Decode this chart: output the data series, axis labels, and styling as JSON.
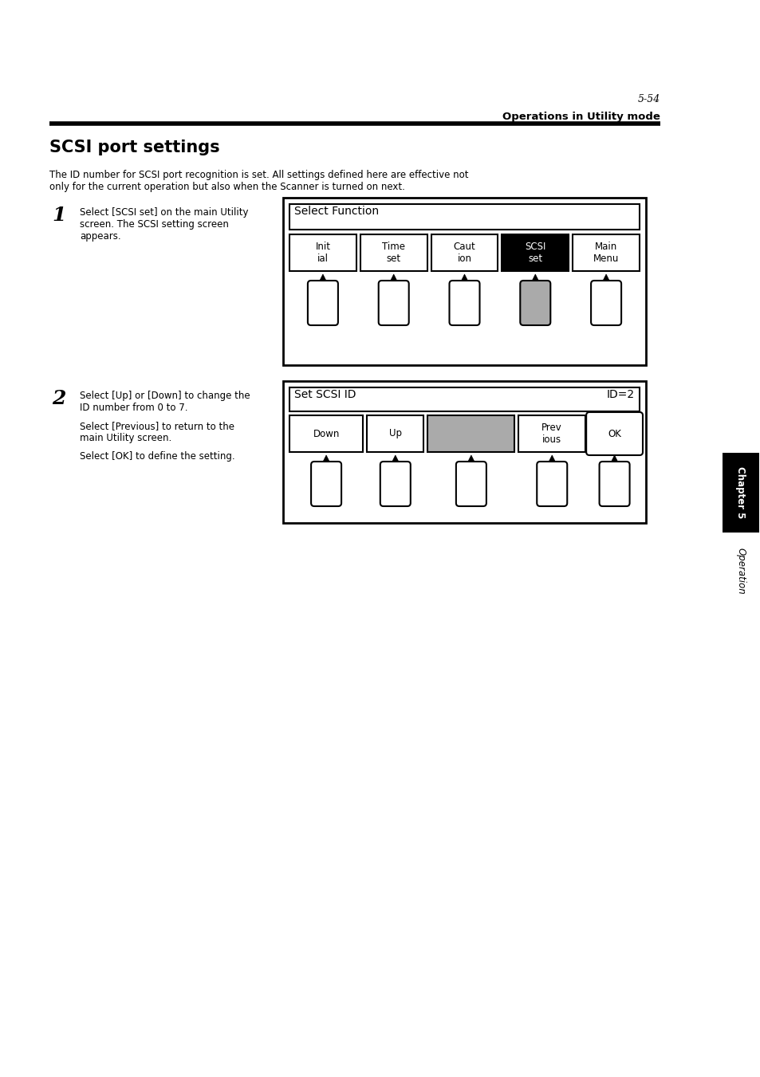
{
  "page_number": "5-54",
  "header_text": "Operations in Utility mode",
  "title": "SCSI port settings",
  "body_text_1": "The ID number for SCSI port recognition is set. All settings defined here are effective not",
  "body_text_2": "only for the current operation but also when the Scanner is turned on next.",
  "step1_number": "1",
  "step1_line1": "Select [SCSI set] on the main Utility",
  "step1_line2": "screen. The SCSI setting screen",
  "step1_line3": "appears.",
  "step2_number": "2",
  "step2_line1": "Select [Up] or [Down] to change the",
  "step2_line2": "ID number from 0 to 7.",
  "step2_line3": "Select [Previous] to return to the",
  "step2_line4": "main Utility screen.",
  "step2_line5": "Select [OK] to define the setting.",
  "diag1_label": "Select Function",
  "diag1_buttons": [
    "Init\nial",
    "Time\nset",
    "Caut\nion",
    "SCSI\nset",
    "Main\nMenu"
  ],
  "diag1_selected": 3,
  "diag2_title_left": "Set SCSI ID",
  "diag2_title_right": "ID=2",
  "diag2_buttons": [
    "Down",
    "Up",
    "",
    "Prev\nious",
    "OK"
  ],
  "diag2_grey": 2,
  "sidebar_chapter": "Chapter 5",
  "sidebar_op": "Operation",
  "bg_color": "#ffffff",
  "text_color": "#000000",
  "sidebar_bg": "#000000",
  "sidebar_text": "#ffffff",
  "grey_color": "#aaaaaa"
}
